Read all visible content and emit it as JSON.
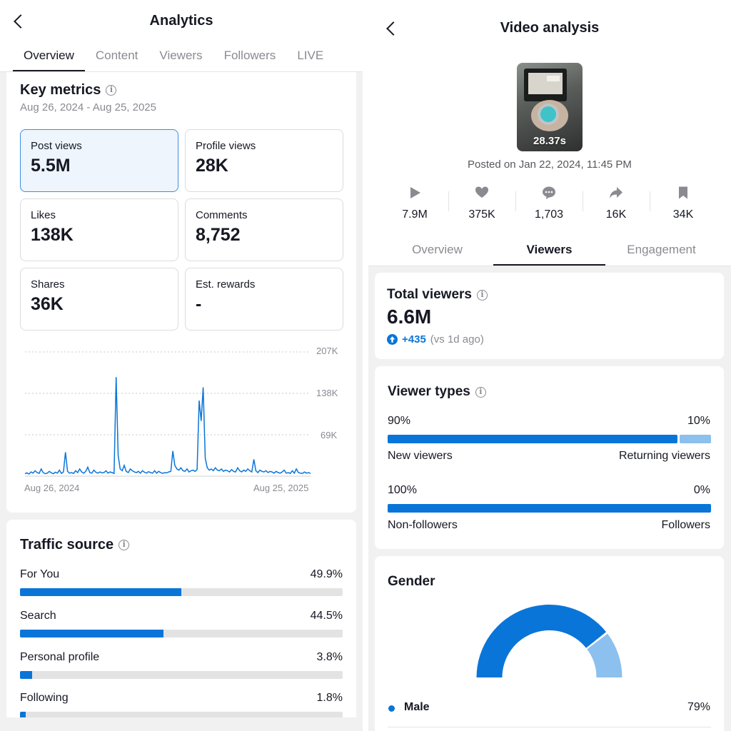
{
  "left": {
    "title": "Analytics",
    "tabs": [
      {
        "label": "Overview",
        "active": true
      },
      {
        "label": "Content"
      },
      {
        "label": "Viewers"
      },
      {
        "label": "Followers"
      },
      {
        "label": "LIVE"
      }
    ],
    "key_metrics": {
      "title": "Key metrics",
      "date_range": "Aug 26, 2024 - Aug 25, 2025",
      "metrics": [
        {
          "label": "Post views",
          "value": "5.5M",
          "selected": true
        },
        {
          "label": "Profile views",
          "value": "28K"
        },
        {
          "label": "Likes",
          "value": "138K"
        },
        {
          "label": "Comments",
          "value": "8,752"
        },
        {
          "label": "Shares",
          "value": "36K"
        },
        {
          "label": "Est. rewards",
          "value": "-"
        }
      ]
    },
    "traffic_source": {
      "title": "Traffic source",
      "items": [
        {
          "label": "For You",
          "percent": "49.9%",
          "value": 49.9
        },
        {
          "label": "Search",
          "percent": "44.5%",
          "value": 44.5
        },
        {
          "label": "Personal profile",
          "percent": "3.8%",
          "value": 3.8
        },
        {
          "label": "Following",
          "percent": "1.8%",
          "value": 1.8
        }
      ]
    }
  },
  "chart_data": {
    "type": "line",
    "x_start_label": "Aug 26, 2024",
    "x_end_label": "Aug 25, 2025",
    "y_ticks": [
      "207K",
      "138K",
      "69K"
    ],
    "y_tick_values": [
      207000,
      138000,
      69000
    ],
    "ylim": [
      0,
      207000
    ],
    "grid": true,
    "series": [
      {
        "color": "#0a75d8",
        "values": [
          4000,
          5500,
          3500,
          7000,
          5000,
          9000,
          6000,
          4500,
          12000,
          6000,
          4000,
          5000,
          8000,
          5500,
          4000,
          6500,
          5000,
          10000,
          4500,
          7000,
          40000,
          8000,
          5000,
          6000,
          4500,
          9000,
          6000,
          12000,
          7000,
          5000,
          8000,
          15000,
          6000,
          5000,
          10000,
          6500,
          5000,
          7000,
          5500,
          6000,
          9000,
          5000,
          7000,
          6000,
          4500,
          165000,
          35000,
          12000,
          9000,
          18000,
          8000,
          6000,
          12000,
          9000,
          7000,
          6000,
          8000,
          5000,
          9000,
          6500,
          5000,
          7500,
          6000,
          5000,
          9000,
          5000,
          8000,
          6000,
          4500,
          6000,
          5500,
          7000,
          8000,
          42000,
          18000,
          12000,
          10000,
          14000,
          9000,
          8000,
          12000,
          7000,
          9000,
          10000,
          8000,
          11000,
          126000,
          92000,
          148000,
          30000,
          14000,
          10000,
          12000,
          9000,
          14000,
          10000,
          9000,
          12000,
          8000,
          10000,
          9000,
          7000,
          11000,
          8000,
          7000,
          14000,
          9000,
          7000,
          10000,
          8000,
          12000,
          9000,
          7000,
          28000,
          9000,
          6000,
          10000,
          8000,
          7000,
          9000,
          6000,
          8000,
          7000,
          5000,
          8000,
          6000,
          5000,
          7000,
          10000,
          5000,
          6000,
          4500,
          9000,
          5000,
          12000,
          6000,
          5000,
          4500,
          7000,
          5000,
          6000,
          4500
        ]
      }
    ]
  },
  "right": {
    "title": "Video analysis",
    "thumbnail_duration": "28.37s",
    "posted": "Posted on Jan 22, 2024, 11:45 PM",
    "stats": [
      {
        "icon": "play-icon",
        "value": "7.9M"
      },
      {
        "icon": "heart-icon",
        "value": "375K"
      },
      {
        "icon": "comment-icon",
        "value": "1,703"
      },
      {
        "icon": "share-icon",
        "value": "16K"
      },
      {
        "icon": "bookmark-icon",
        "value": "34K"
      }
    ],
    "tabs": [
      {
        "label": "Overview"
      },
      {
        "label": "Viewers",
        "active": true
      },
      {
        "label": "Engagement"
      }
    ],
    "total_viewers": {
      "title": "Total viewers",
      "value": "6.6M",
      "delta": "+435",
      "delta_note": "(vs 1d ago)"
    },
    "viewer_types": {
      "title": "Viewer types",
      "rows": [
        {
          "left_pct": "90%",
          "right_pct": "10%",
          "left_value": 90,
          "left_label": "New viewers",
          "right_label": "Returning viewers"
        },
        {
          "left_pct": "100%",
          "right_pct": "0%",
          "left_value": 100,
          "left_label": "Non-followers",
          "right_label": "Followers"
        }
      ]
    },
    "gender": {
      "title": "Gender",
      "male_value": 79,
      "items": [
        {
          "label": "Male",
          "percent": "79%"
        }
      ]
    },
    "colors": {
      "primary": "#0a75d8",
      "secondary": "#8cc0ee",
      "track": "#e3e3e4"
    }
  }
}
